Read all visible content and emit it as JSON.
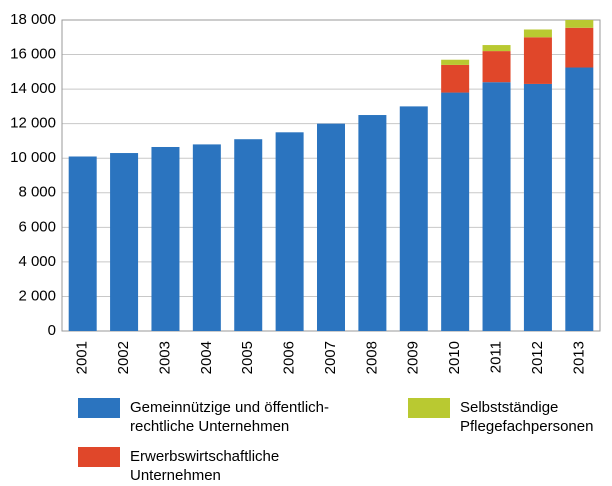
{
  "chart_data": {
    "type": "stacked_bar",
    "categories": [
      "2001",
      "2002",
      "2003",
      "2004",
      "2005",
      "2006",
      "2007",
      "2008",
      "2009",
      "2010",
      "2011",
      "2012",
      "2013"
    ],
    "series": [
      {
        "name": "Gemeinnützige und öffentlich-rechtliche Unternehmen",
        "color": "#2b74bf",
        "values": [
          10100,
          10300,
          10650,
          10800,
          11100,
          11500,
          12000,
          12500,
          13000,
          13800,
          14400,
          14300,
          15250
        ]
      },
      {
        "name": "Erwerbswirtschaftliche Unternehmen",
        "color": "#e0472a",
        "values": [
          null,
          null,
          null,
          null,
          null,
          null,
          null,
          null,
          null,
          1600,
          1800,
          2700,
          2300
        ]
      },
      {
        "name": "Selbstständige Pflegefachpersonen",
        "color": "#b9c931",
        "values": [
          null,
          null,
          null,
          null,
          null,
          null,
          null,
          null,
          null,
          300,
          350,
          450,
          450
        ]
      }
    ],
    "ylim": [
      0,
      18000
    ],
    "yticks": [
      0,
      {
        "value": 2000,
        "label": "2 000"
      },
      {
        "value": 4000,
        "label": "4 000"
      },
      {
        "value": 6000,
        "label": "6 000"
      },
      {
        "value": 8000,
        "label": "8 000"
      },
      {
        "value": 10000,
        "label": "10 000"
      },
      {
        "value": 12000,
        "label": "12 000"
      },
      {
        "value": 14000,
        "label": "14 000"
      },
      {
        "value": 16000,
        "label": "16 000"
      },
      {
        "value": 18000,
        "label": "18 000"
      }
    ],
    "grid": true
  }
}
